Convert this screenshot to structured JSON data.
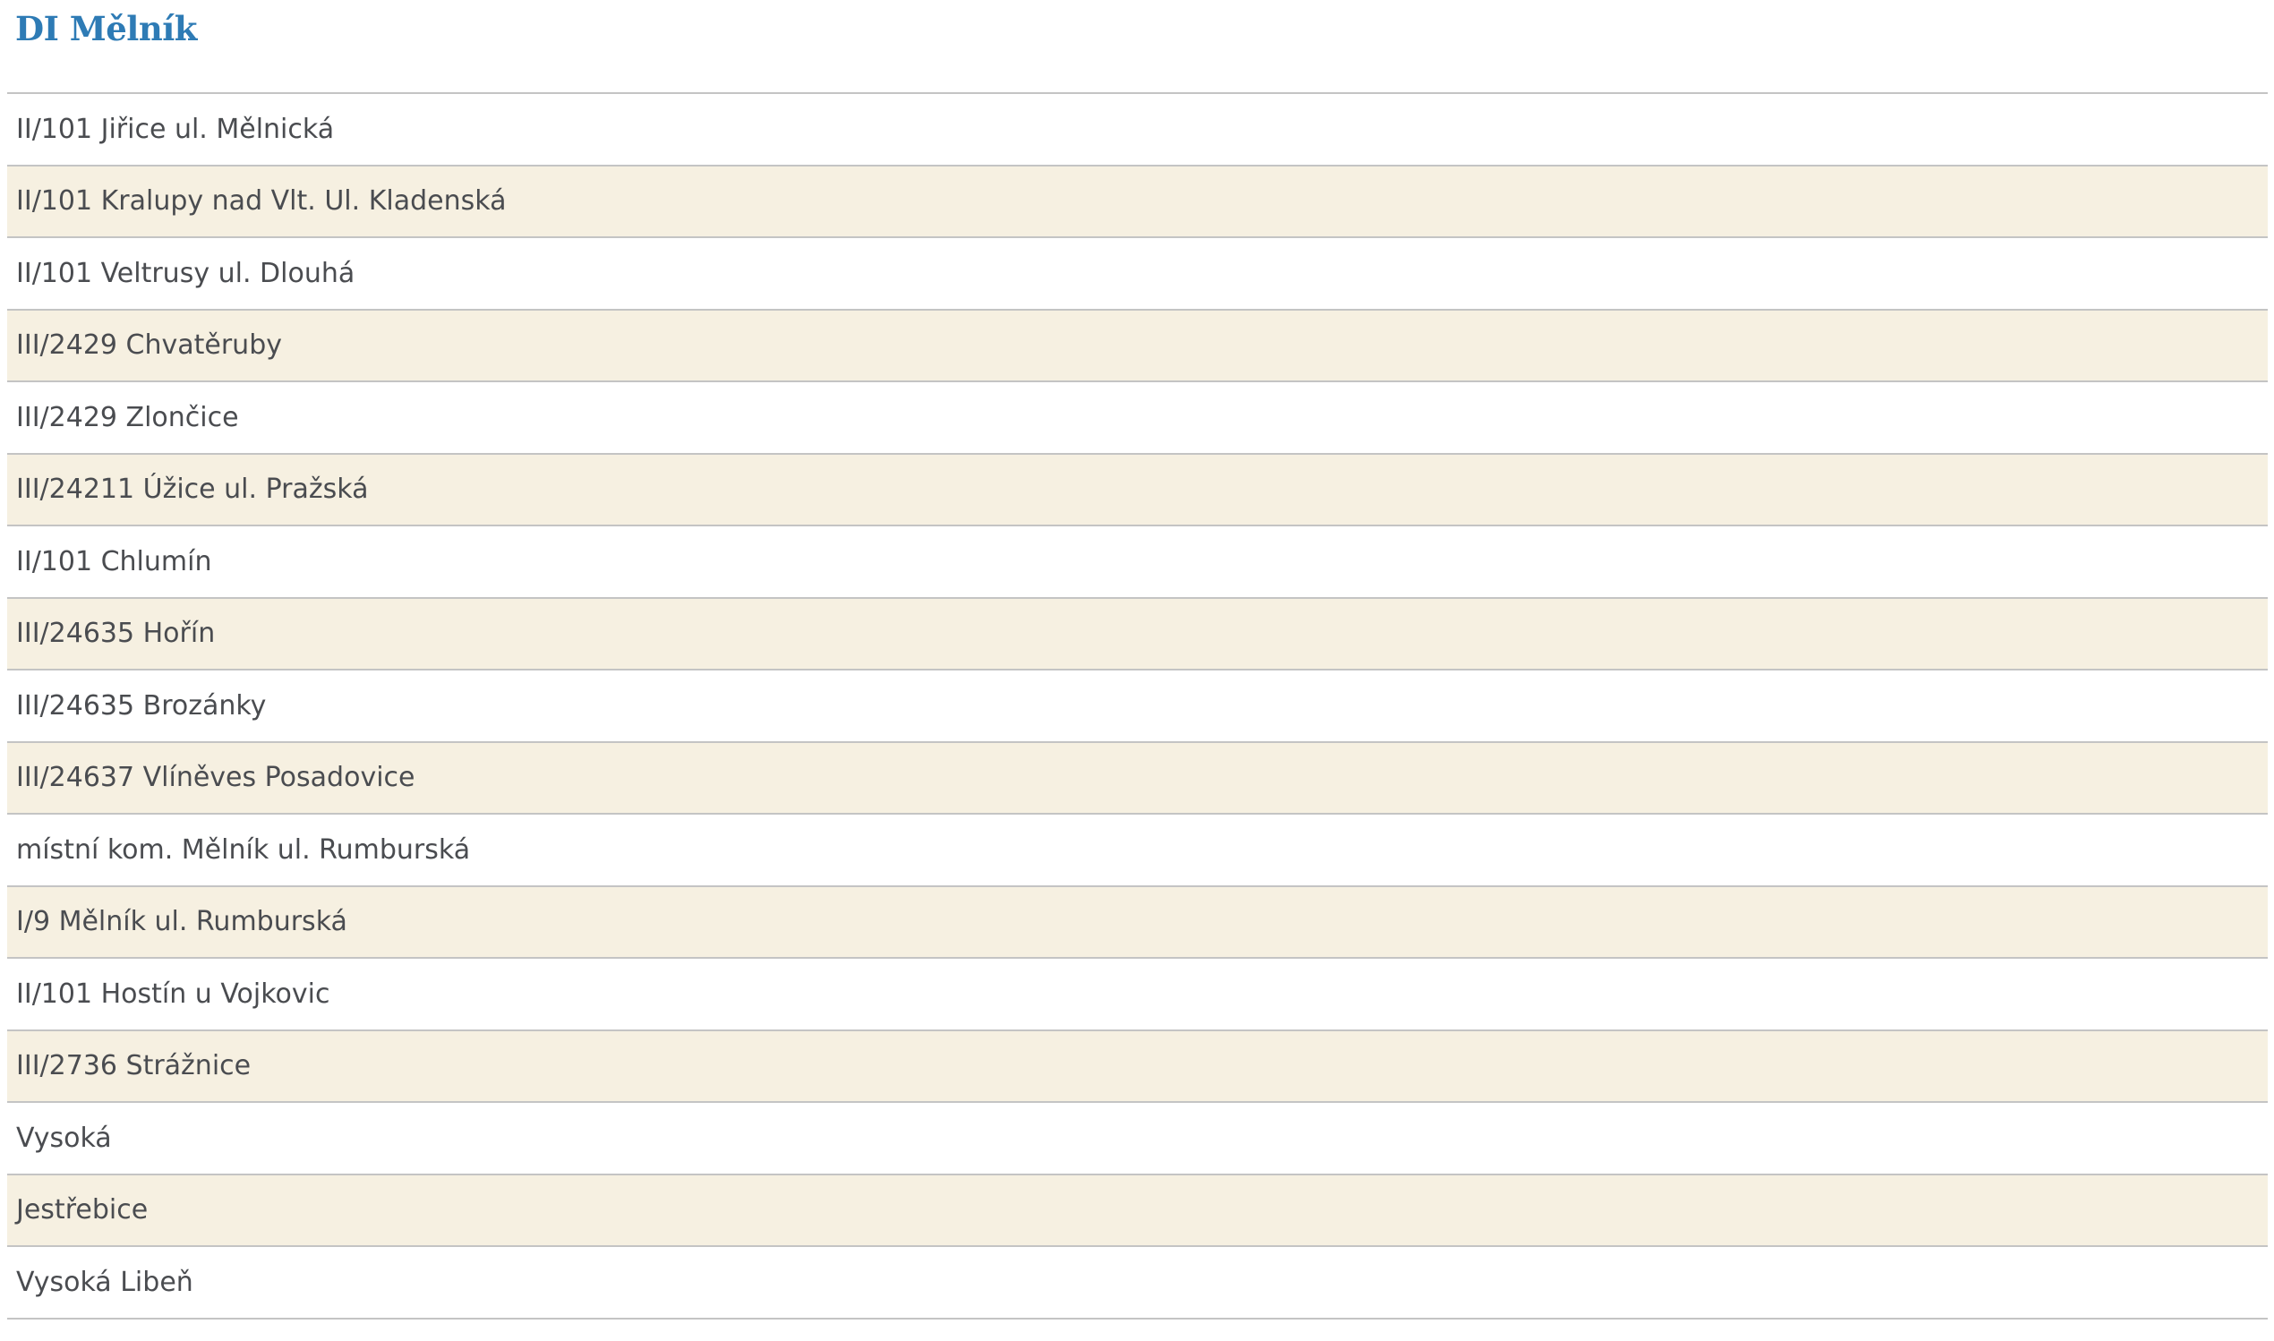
{
  "heading": "DI Mělník",
  "colors": {
    "heading": "#2e7bb5",
    "alt_row": "#f6f0e1",
    "text": "#4a4c50",
    "divider": "#c4c4c4"
  },
  "items": [
    "II/101 Jiřice ul. Mělnická",
    "II/101 Kralupy nad Vlt. Ul. Kladenská",
    "II/101 Veltrusy ul. Dlouhá",
    "III/2429 Chvatěruby",
    "III/2429 Zlončice",
    "III/24211 Úžice ul. Pražská",
    "II/101 Chlumín",
    "III/24635 Hořín",
    "III/24635 Brozánky",
    "III/24637 Vlíněves Posadovice",
    "místní kom.  Mělník ul. Rumburská",
    "I/9 Mělník ul. Rumburská",
    "II/101 Hostín u Vojkovic",
    "III/2736 Strážnice",
    "Vysoká",
    "Jestřebice",
    "Vysoká Libeň"
  ]
}
